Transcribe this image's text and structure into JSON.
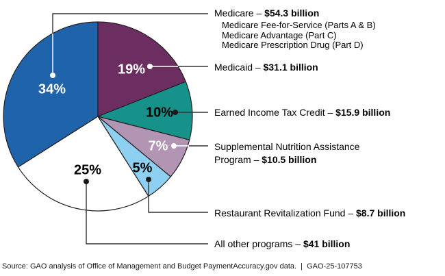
{
  "chart_data": {
    "type": "pie",
    "title": "",
    "unit": "percent of total improper payment estimates",
    "start_angle_deg_from_top": 0,
    "direction": "clockwise",
    "outline_color": "#231f20",
    "leader_line_color": "#333333",
    "slices": [
      {
        "id": "medicaid",
        "program": "Medicaid",
        "pct": 19,
        "pct_label": "19%",
        "amount": "$31.1 billion",
        "color": "#6c2e60",
        "pct_text_color": "#ffffff"
      },
      {
        "id": "eitc",
        "program": "Earned Income Tax Credit",
        "pct": 10,
        "pct_label": "10%",
        "amount": "$15.9 billion",
        "color": "#17928a",
        "pct_text_color": "#000000"
      },
      {
        "id": "snap",
        "program": "Supplemental Nutrition Assistance Program",
        "pct": 7,
        "pct_label": "7%",
        "amount": "$10.5 billion",
        "color": "#b294b3",
        "pct_text_color": "#ffffff"
      },
      {
        "id": "rrf",
        "program": "Restaurant Revitalization Fund",
        "pct": 5,
        "pct_label": "5%",
        "amount": "$8.7 billion",
        "color": "#8dd0f1",
        "pct_text_color": "#000000"
      },
      {
        "id": "all-other",
        "program": "All other programs",
        "pct": 25,
        "pct_label": "25%",
        "amount": "$41 billion",
        "color": "#ffffff",
        "pct_text_color": "#000000"
      },
      {
        "id": "medicare",
        "program": "Medicare",
        "pct": 34,
        "pct_label": "34%",
        "amount": "$54.3 billion",
        "color": "#1f64ab",
        "pct_text_color": "#ffffff"
      }
    ]
  },
  "legend": {
    "medicare": {
      "name": "Medicare – ",
      "amount": "$54.3 billion",
      "sublines": [
        "Medicare Fee-for-Service (Parts A & B)",
        "Medicare Advantage (Part C)",
        "Medicare Prescription Drug (Part D)"
      ]
    },
    "medicaid": {
      "name": "Medicaid – ",
      "amount": "$31.1 billion"
    },
    "eitc": {
      "name": "Earned Income Tax Credit – ",
      "amount": "$15.9 billion"
    },
    "snap": {
      "line1": "Supplemental Nutrition Assistance",
      "line2": "Program – ",
      "amount": "$10.5 billion"
    },
    "rrf": {
      "name": "Restaurant Revitalization Fund – ",
      "amount": "$8.7 billion"
    },
    "all_other": {
      "name": "All other programs – ",
      "amount": "$41 billion"
    }
  },
  "footer": {
    "source": "Source: GAO analysis of Office of Management and Budget PaymentAccuracy.gov data.  |  GAO-25-107753"
  }
}
